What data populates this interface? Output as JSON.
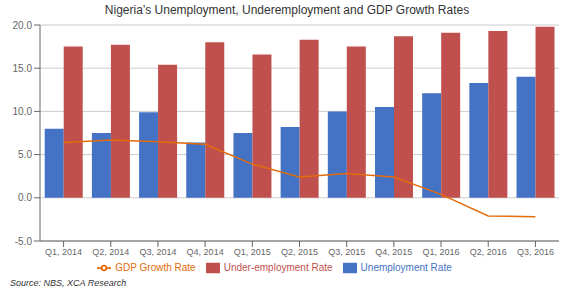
{
  "chart_data": {
    "type": "bar",
    "title": "Nigeria’s Unemployment, Underemployment and GDP Growth Rates",
    "categories": [
      "Q1, 2014",
      "Q2, 2014",
      "Q3, 2014",
      "Q4, 2014",
      "Q1, 2015",
      "Q2, 2015",
      "Q3, 2015",
      "Q4, 2015",
      "Q1, 2016",
      "Q2, 2016",
      "Q3, 2016"
    ],
    "series": [
      {
        "name": "Unemployment Rate",
        "type": "bar",
        "color": "#4472C4",
        "values": [
          8.0,
          7.5,
          9.9,
          6.4,
          7.5,
          8.2,
          10.0,
          10.5,
          12.1,
          13.3,
          14.0
        ]
      },
      {
        "name": "Under-employment Rate",
        "type": "bar",
        "color": "#C0504D",
        "values": [
          17.5,
          17.7,
          15.4,
          18.0,
          16.6,
          18.3,
          17.5,
          18.7,
          19.1,
          19.3,
          19.8
        ]
      },
      {
        "name": "GDP Growth Rate",
        "type": "line",
        "color": "#E46C0A",
        "values": [
          6.4,
          6.7,
          6.5,
          6.2,
          3.9,
          2.4,
          2.8,
          2.4,
          0.4,
          -2.1,
          -2.2
        ]
      }
    ],
    "ylim": [
      -5.0,
      20.0
    ],
    "yticks": [
      {
        "value": -5.0,
        "label": "-5.0"
      },
      {
        "value": 0.0,
        "label": "0.0"
      },
      {
        "value": 5.0,
        "label": "5.0"
      },
      {
        "value": 10.0,
        "label": "10.0"
      },
      {
        "value": 15.0,
        "label": "15.0"
      },
      {
        "value": 20.0,
        "label": "20.0"
      }
    ],
    "grid": true,
    "legend": "bottom",
    "annotations": [
      "Source: NBS, XCA Research"
    ]
  }
}
